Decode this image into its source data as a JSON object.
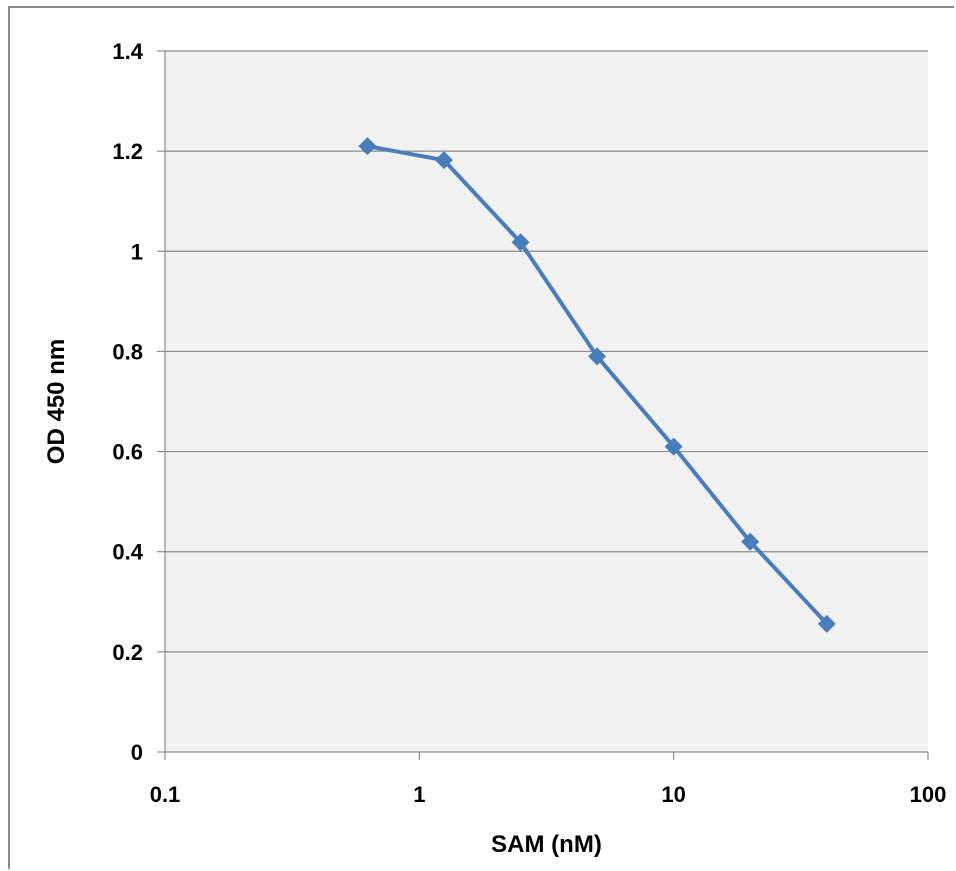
{
  "chart_data": {
    "type": "line",
    "title": "",
    "xlabel": "SAM (nM)",
    "ylabel": "OD 450 nm",
    "x_scale": "log",
    "xlim": [
      0.1,
      100
    ],
    "ylim": [
      0,
      1.4
    ],
    "x_ticks": [
      "0.1",
      "1",
      "10",
      "100"
    ],
    "x_tick_values": [
      0.1,
      1,
      10,
      100
    ],
    "y_ticks": [
      "0",
      "0.2",
      "0.4",
      "0.6",
      "0.8",
      "1",
      "1.2",
      "1.4"
    ],
    "y_tick_values": [
      0,
      0.2,
      0.4,
      0.6,
      0.8,
      1,
      1.2,
      1.4
    ],
    "grid": "horizontal",
    "legend": "none",
    "series": [
      {
        "x": [
          0.625,
          1.25,
          2.5,
          5,
          10,
          20,
          40
        ],
        "y": [
          1.21,
          1.182,
          1.018,
          0.79,
          0.61,
          0.42,
          0.256
        ],
        "marker": "diamond",
        "color": "#4a7ebb"
      }
    ],
    "colors": {
      "plot_background": "#f2f2f2",
      "gridline": "#8c8c8c",
      "series": "#4a7ebb"
    }
  }
}
